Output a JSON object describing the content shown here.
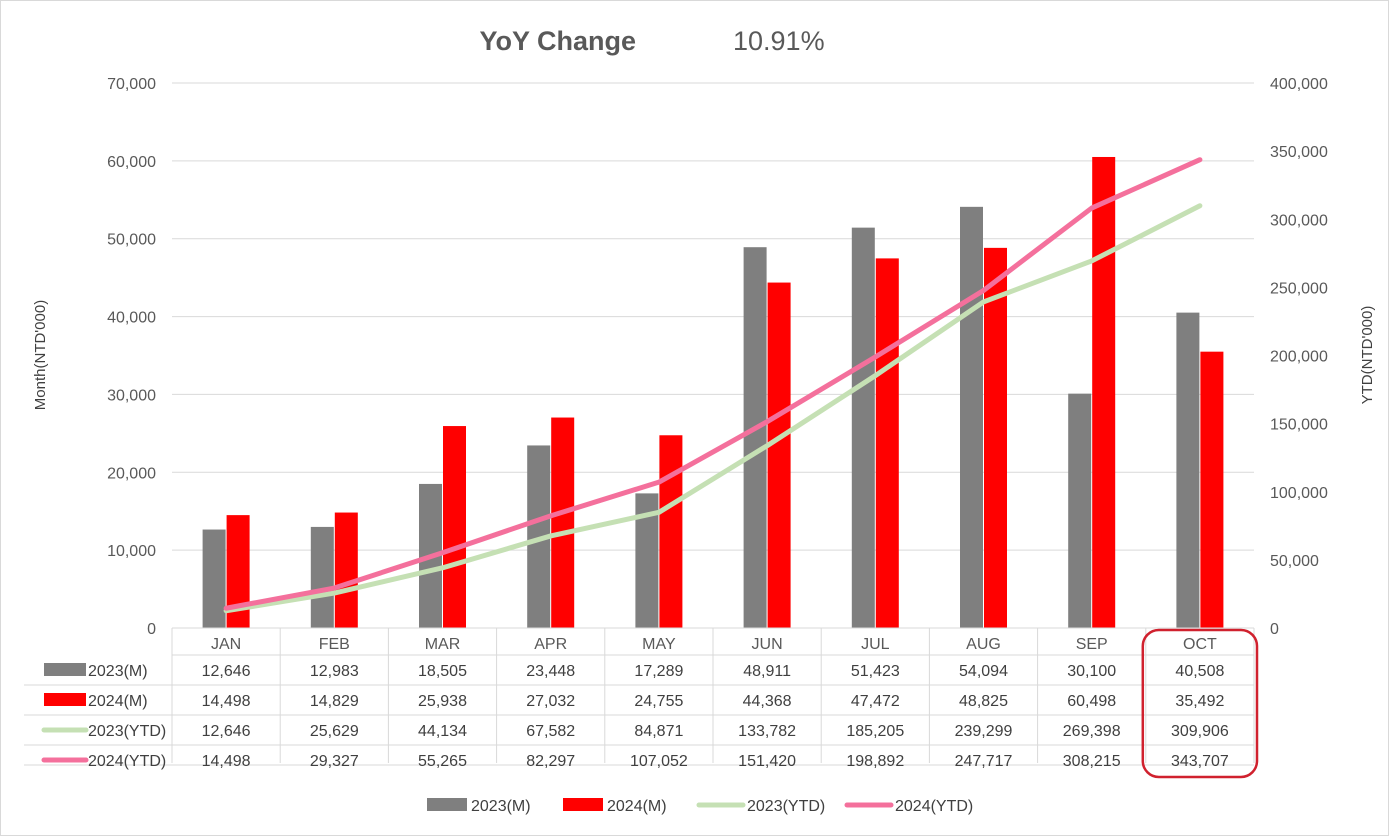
{
  "chart_data": {
    "type": "bar",
    "title": "YoY Change",
    "title_value": "10.91%",
    "categories": [
      "JAN",
      "FEB",
      "MAR",
      "APR",
      "MAY",
      "JUN",
      "JUL",
      "AUG",
      "SEP",
      "OCT"
    ],
    "y_left": {
      "label": "Month(NTD'000)",
      "range": [
        0,
        70000
      ],
      "step": 10000,
      "ticks": [
        "0",
        "10,000",
        "20,000",
        "30,000",
        "40,000",
        "50,000",
        "60,000",
        "70,000"
      ]
    },
    "y_right": {
      "label": "YTD(NTD'000)",
      "range": [
        0,
        400000
      ],
      "step": 50000,
      "ticks": [
        "0",
        "50,000",
        "100,000",
        "150,000",
        "200,000",
        "250,000",
        "300,000",
        "350,000",
        "400,000"
      ]
    },
    "grid": true,
    "legend_position": "bottom",
    "highlight_category": "OCT",
    "highlight_color": "#d0212e",
    "series": [
      {
        "name": "2023(M)",
        "type": "bar",
        "axis": "left",
        "color": "#7f7f7f",
        "values": [
          12646,
          12983,
          18505,
          23448,
          17289,
          48911,
          51423,
          54094,
          30100,
          40508
        ],
        "labels": [
          "12,646",
          "12,983",
          "18,505",
          "23,448",
          "17,289",
          "48,911",
          "51,423",
          "54,094",
          "30,100",
          "40,508"
        ]
      },
      {
        "name": "2024(M)",
        "type": "bar",
        "axis": "left",
        "color": "#ff0000",
        "values": [
          14498,
          14829,
          25938,
          27032,
          24755,
          44368,
          47472,
          48825,
          60498,
          35492
        ],
        "labels": [
          "14,498",
          "14,829",
          "25,938",
          "27,032",
          "24,755",
          "44,368",
          "47,472",
          "48,825",
          "60,498",
          "35,492"
        ]
      },
      {
        "name": "2023(YTD)",
        "type": "line",
        "axis": "right",
        "color": "#c5e0b4",
        "values": [
          12646,
          25629,
          44134,
          67582,
          84871,
          133782,
          185205,
          239299,
          269398,
          309906
        ],
        "labels": [
          "12,646",
          "25,629",
          "44,134",
          "67,582",
          "84,871",
          "133,782",
          "185,205",
          "239,299",
          "269,398",
          "309,906"
        ]
      },
      {
        "name": "2024(YTD)",
        "type": "line",
        "axis": "right",
        "color": "#f4709c",
        "values": [
          14498,
          29327,
          55265,
          82297,
          107052,
          151420,
          198892,
          247717,
          308215,
          343707
        ],
        "labels": [
          "14,498",
          "29,327",
          "55,265",
          "82,297",
          "107,052",
          "151,420",
          "198,892",
          "247,717",
          "308,215",
          "343,707"
        ]
      }
    ]
  }
}
